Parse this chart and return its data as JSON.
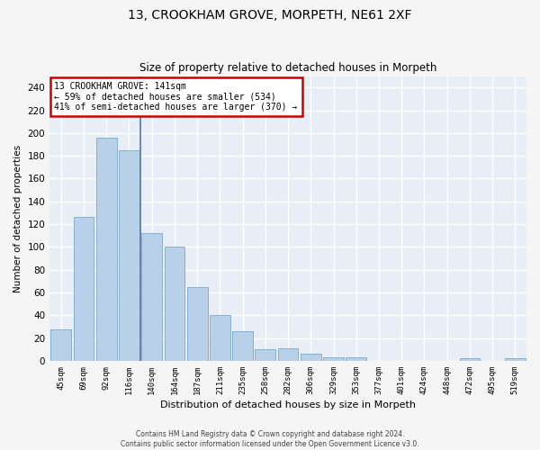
{
  "title": "13, CROOKHAM GROVE, MORPETH, NE61 2XF",
  "subtitle": "Size of property relative to detached houses in Morpeth",
  "xlabel": "Distribution of detached houses by size in Morpeth",
  "ylabel": "Number of detached properties",
  "bar_color": "#b8d0e8",
  "bar_edge_color": "#7aaace",
  "background_color": "#e8eef5",
  "fig_background_color": "#f5f5f5",
  "grid_color": "#ffffff",
  "vline_color": "#5577aa",
  "categories": [
    "45sqm",
    "69sqm",
    "92sqm",
    "116sqm",
    "140sqm",
    "164sqm",
    "187sqm",
    "211sqm",
    "235sqm",
    "258sqm",
    "282sqm",
    "306sqm",
    "329sqm",
    "353sqm",
    "377sqm",
    "401sqm",
    "424sqm",
    "448sqm",
    "472sqm",
    "495sqm",
    "519sqm"
  ],
  "values": [
    28,
    126,
    196,
    185,
    112,
    100,
    65,
    40,
    26,
    10,
    11,
    6,
    3,
    3,
    0,
    0,
    0,
    0,
    2,
    0,
    2
  ],
  "ylim": [
    0,
    250
  ],
  "yticks": [
    0,
    20,
    40,
    60,
    80,
    100,
    120,
    140,
    160,
    180,
    200,
    220,
    240
  ],
  "property_line_index": 4,
  "annotation_text": "13 CROOKHAM GROVE: 141sqm\n← 59% of detached houses are smaller (534)\n41% of semi-detached houses are larger (370) →",
  "annotation_box_color": "#ffffff",
  "annotation_border_color": "#cc0000",
  "footer_line1": "Contains HM Land Registry data © Crown copyright and database right 2024.",
  "footer_line2": "Contains public sector information licensed under the Open Government Licence v3.0."
}
